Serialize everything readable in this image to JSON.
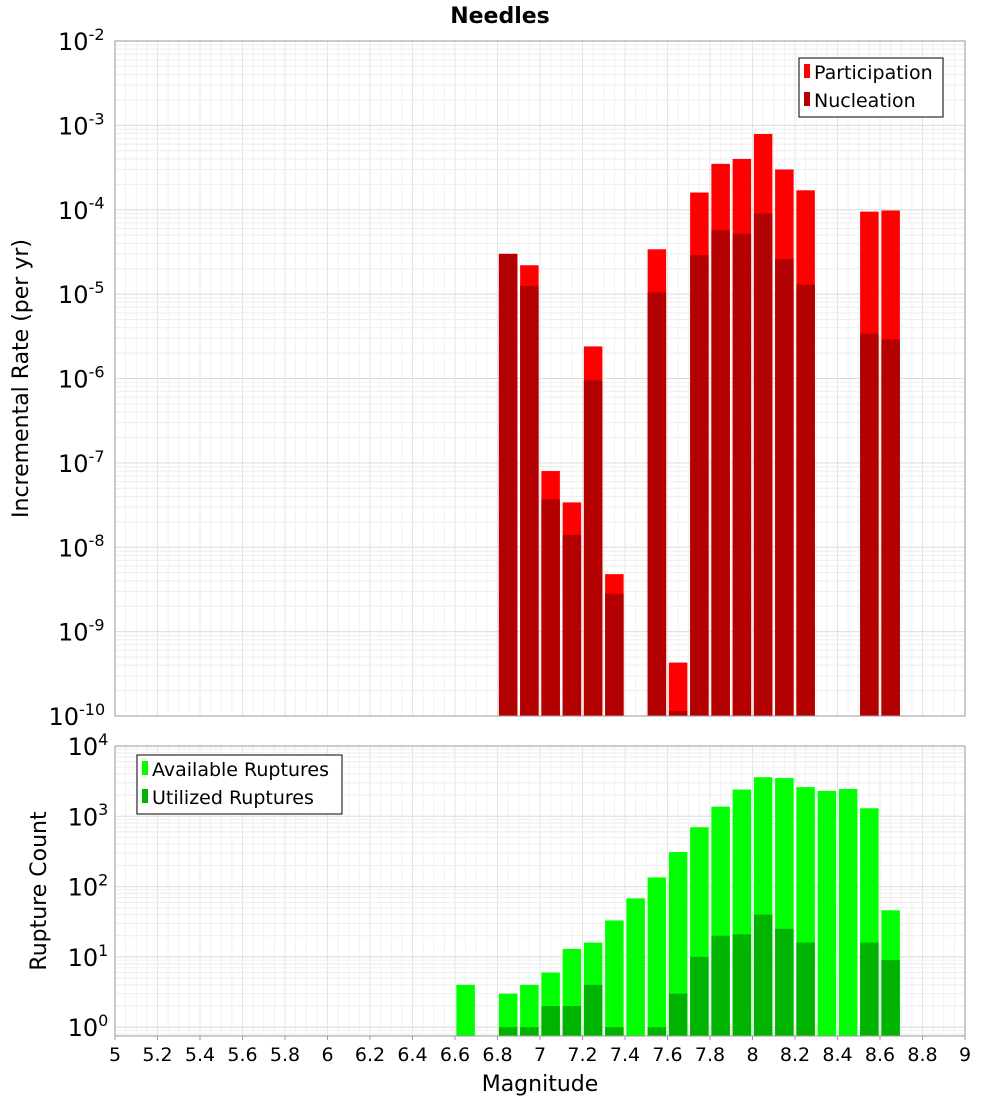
{
  "chart_data": [
    {
      "type": "bar",
      "title": "Needles",
      "ylabel": "Incremental Rate (per yr)",
      "xlabel": "",
      "yscale": "log",
      "ylim": [
        1e-10,
        0.01
      ],
      "xlim": [
        5,
        9
      ],
      "ytick_labels": [
        "10-10",
        "10-9",
        "10-8",
        "10-7",
        "10-6",
        "10-5",
        "10-4",
        "10-3",
        "10-2"
      ],
      "legend": {
        "placement": "top-right",
        "entries": [
          "Participation",
          "Nucleation"
        ]
      },
      "colors": {
        "Participation": "#ff0000",
        "Nucleation": "#b30000"
      },
      "grid": true,
      "x": [
        6.85,
        6.95,
        7.05,
        7.15,
        7.25,
        7.35,
        7.55,
        7.65,
        7.75,
        7.85,
        7.95,
        8.05,
        8.15,
        8.25,
        8.55,
        8.65
      ],
      "series": [
        {
          "name": "Participation",
          "values": [
            3e-05,
            2.2e-05,
            8e-08,
            3.4e-08,
            2.4e-06,
            4.8e-09,
            3.4e-05,
            4.3e-10,
            0.00016,
            0.00035,
            0.0004,
            0.00079,
            0.0003,
            0.00017,
            9.5e-05,
            9.8e-05
          ]
        },
        {
          "name": "Nucleation",
          "values": [
            3e-05,
            1.25e-05,
            3.7e-08,
            1.4e-08,
            9.5e-07,
            2.8e-09,
            1.05e-05,
            1.15e-10,
            2.9e-05,
            5.7e-05,
            5.2e-05,
            9e-05,
            2.6e-05,
            1.3e-05,
            3.4e-06,
            2.9e-06
          ]
        }
      ]
    },
    {
      "type": "bar",
      "title": "",
      "xlabel": "Magnitude",
      "ylabel": "Rupture Count",
      "yscale": "log",
      "ylim": [
        0.75,
        10000
      ],
      "xlim": [
        5,
        9
      ],
      "xtick_labels": [
        "5",
        "5.2",
        "5.4",
        "5.6",
        "5.8",
        "6",
        "6.2",
        "6.4",
        "6.6",
        "6.8",
        "7",
        "7.2",
        "7.4",
        "7.6",
        "7.8",
        "8",
        "8.2",
        "8.4",
        "8.6",
        "8.8",
        "9"
      ],
      "ytick_labels": [
        "100",
        "101",
        "102",
        "103",
        "104"
      ],
      "legend": {
        "placement": "top-left",
        "entries": [
          "Available Ruptures",
          "Utilized Ruptures"
        ]
      },
      "colors": {
        "Available Ruptures": "#00ff00",
        "Utilized Ruptures": "#00b300"
      },
      "grid": true,
      "x": [
        6.65,
        6.85,
        6.95,
        7.05,
        7.15,
        7.25,
        7.35,
        7.45,
        7.55,
        7.65,
        7.75,
        7.85,
        7.95,
        8.05,
        8.15,
        8.25,
        8.35,
        8.45,
        8.55,
        8.65
      ],
      "series": [
        {
          "name": "Available Ruptures",
          "values": [
            4,
            3,
            4,
            6,
            13,
            16,
            33,
            68,
            135,
            310,
            700,
            1370,
            2400,
            3600,
            3500,
            2600,
            2300,
            2450,
            1300,
            46
          ]
        },
        {
          "name": "Utilized Ruptures",
          "values": [
            0,
            1,
            1,
            2,
            2,
            4,
            1,
            0,
            1,
            3,
            10,
            20,
            21,
            40,
            25,
            16,
            0,
            0,
            16,
            9
          ]
        }
      ]
    }
  ]
}
